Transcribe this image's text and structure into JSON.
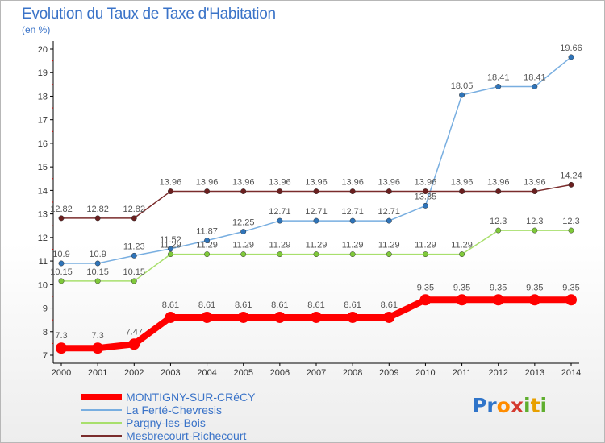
{
  "title": "Evolution du Taux de Taxe d'Habitation",
  "subtitle": "(en %)",
  "logo_text": "Proxiti",
  "chart_data": {
    "type": "line",
    "x": [
      "2000",
      "2001",
      "2002",
      "2003",
      "2004",
      "2005",
      "2006",
      "2007",
      "2008",
      "2009",
      "2010",
      "2011",
      "2012",
      "2013",
      "2014"
    ],
    "ylim": [
      7,
      20
    ],
    "yticks": [
      7,
      8,
      9,
      10,
      11,
      12,
      13,
      14,
      15,
      16,
      17,
      18,
      19,
      20
    ],
    "grid": false,
    "legend_position": "bottom-left",
    "series": [
      {
        "name": "MONTIGNY-SUR-CRéCY",
        "color": "#ff0000",
        "marker_color": "#ff0000",
        "width": "thick",
        "values": [
          7.3,
          7.3,
          7.47,
          8.61,
          8.61,
          8.61,
          8.61,
          8.61,
          8.61,
          8.61,
          9.35,
          9.35,
          9.35,
          9.35,
          9.35
        ],
        "labels": [
          "7.3",
          "7.3",
          "7.47",
          "8.61",
          "8.61",
          "8.61",
          "8.61",
          "8.61",
          "8.61",
          "8.61",
          "9.35",
          "9.35",
          "9.35",
          "9.35",
          "9.35"
        ]
      },
      {
        "name": "La Ferté-Chevresis",
        "color": "#78aee0",
        "marker_color": "#2f74b9",
        "width": "thin",
        "values": [
          10.9,
          10.9,
          11.23,
          11.52,
          11.87,
          12.25,
          12.71,
          12.71,
          12.71,
          12.71,
          13.35,
          18.05,
          18.41,
          18.41,
          19.66
        ],
        "labels": [
          "10.9",
          "10.9",
          "11.23",
          "11.52",
          "11.87",
          "12.25",
          "12.71",
          "12.71",
          "12.71",
          "12.71",
          "13.35",
          "18.05",
          "18.41",
          "18.41",
          "19.66"
        ]
      },
      {
        "name": "Pargny-les-Bois",
        "color": "#a8df6c",
        "marker_color": "#7fc93a",
        "width": "thin",
        "values": [
          10.15,
          10.15,
          10.15,
          11.29,
          11.29,
          11.29,
          11.29,
          11.29,
          11.29,
          11.29,
          11.29,
          11.29,
          12.3,
          12.3,
          12.3
        ],
        "labels": [
          "10.15",
          "10.15",
          "10.15",
          "11.29",
          "11.29",
          "11.29",
          "11.29",
          "11.29",
          "11.29",
          "11.29",
          "11.29",
          "11.29",
          "12.3",
          "12.3",
          "12.3"
        ]
      },
      {
        "name": "Mesbrecourt-Richecourt",
        "color": "#7a2c2c",
        "marker_color": "#6b1f1f",
        "width": "thin",
        "values": [
          12.82,
          12.82,
          12.82,
          13.96,
          13.96,
          13.96,
          13.96,
          13.96,
          13.96,
          13.96,
          13.96,
          13.96,
          13.96,
          13.96,
          14.24
        ],
        "labels": [
          "12.82",
          "12.82",
          "12.82",
          "13.96",
          "13.96",
          "13.96",
          "13.96",
          "13.96",
          "13.96",
          "13.96",
          "13.96",
          "13.96",
          "13.96",
          "13.96",
          "14.24"
        ]
      }
    ]
  }
}
